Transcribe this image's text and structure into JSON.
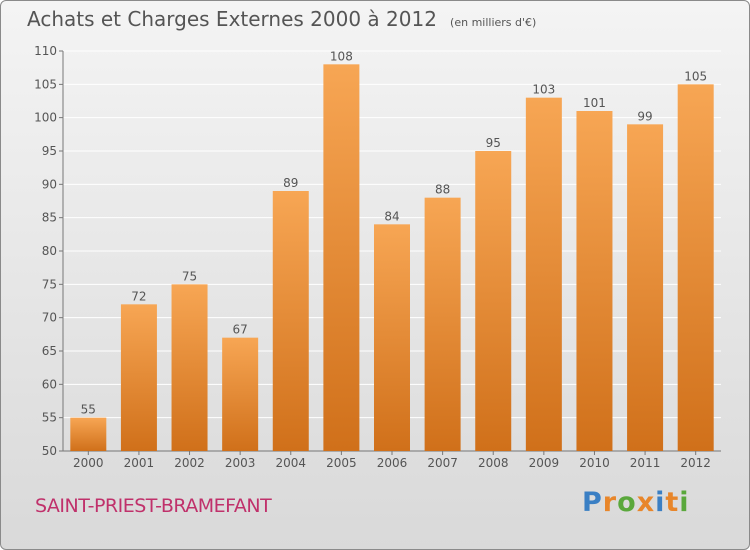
{
  "chart_data": {
    "type": "bar",
    "title": "Achats et Charges Externes 2000 à 2012",
    "subtitle": "(en milliers d'€)",
    "categories": [
      "2000",
      "2001",
      "2002",
      "2003",
      "2004",
      "2005",
      "2006",
      "2007",
      "2008",
      "2009",
      "2010",
      "2011",
      "2012"
    ],
    "values": [
      55,
      72,
      75,
      67,
      89,
      108,
      84,
      88,
      95,
      103,
      101,
      99,
      105
    ],
    "ylim": [
      50,
      110
    ],
    "yticks": [
      50,
      55,
      60,
      65,
      70,
      75,
      80,
      85,
      90,
      95,
      100,
      105,
      110
    ],
    "grid": true,
    "bar_color_light": "#f7a654",
    "bar_color_dark": "#d0701a"
  },
  "footer": {
    "commune": "SAINT-PRIEST-BRAMEFANT",
    "brand": "Proxiti",
    "brand_colors": [
      "#3a7fc4",
      "#e8862a",
      "#5aa83c",
      "#e8862a",
      "#3a7fc4",
      "#e8862a",
      "#5aa83c"
    ]
  }
}
